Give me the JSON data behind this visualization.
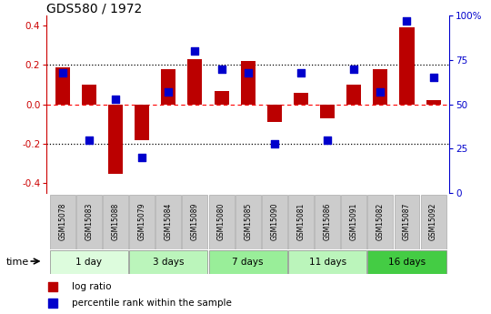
{
  "title": "GDS580 / 1972",
  "samples": [
    "GSM15078",
    "GSM15083",
    "GSM15088",
    "GSM15079",
    "GSM15084",
    "GSM15089",
    "GSM15080",
    "GSM15085",
    "GSM15090",
    "GSM15081",
    "GSM15086",
    "GSM15091",
    "GSM15082",
    "GSM15087",
    "GSM15092"
  ],
  "log_ratio": [
    0.19,
    0.1,
    -0.35,
    -0.18,
    0.18,
    0.23,
    0.07,
    0.22,
    -0.09,
    0.06,
    -0.07,
    0.1,
    0.18,
    0.39,
    0.02
  ],
  "percentile": [
    68,
    30,
    53,
    20,
    57,
    80,
    70,
    68,
    28,
    68,
    30,
    70,
    57,
    97,
    65
  ],
  "groups": [
    {
      "label": "1 day",
      "start": 0,
      "end": 3,
      "color": "#ddfcdd"
    },
    {
      "label": "3 days",
      "start": 3,
      "end": 6,
      "color": "#bbf5bb"
    },
    {
      "label": "7 days",
      "start": 6,
      "end": 9,
      "color": "#99ee99"
    },
    {
      "label": "11 days",
      "start": 9,
      "end": 12,
      "color": "#bbf5bb"
    },
    {
      "label": "16 days",
      "start": 12,
      "end": 15,
      "color": "#44cc44"
    }
  ],
  "bar_color": "#bb0000",
  "dot_color": "#0000cc",
  "left_axis_color": "#cc0000",
  "right_axis_color": "#0000cc",
  "ylim": [
    -0.45,
    0.45
  ],
  "yticks_left": [
    -0.4,
    -0.2,
    0.0,
    0.2,
    0.4
  ],
  "yticks_right": [
    0,
    25,
    50,
    75,
    100
  ],
  "hlines_dotted": [
    -0.2,
    0.2
  ],
  "hline_dashed": 0.0,
  "bar_width": 0.55,
  "dot_size": 35,
  "sample_box_color": "#cccccc",
  "legend_items": [
    {
      "label": "log ratio",
      "color": "#bb0000"
    },
    {
      "label": "percentile rank within the sample",
      "color": "#0000cc"
    }
  ]
}
